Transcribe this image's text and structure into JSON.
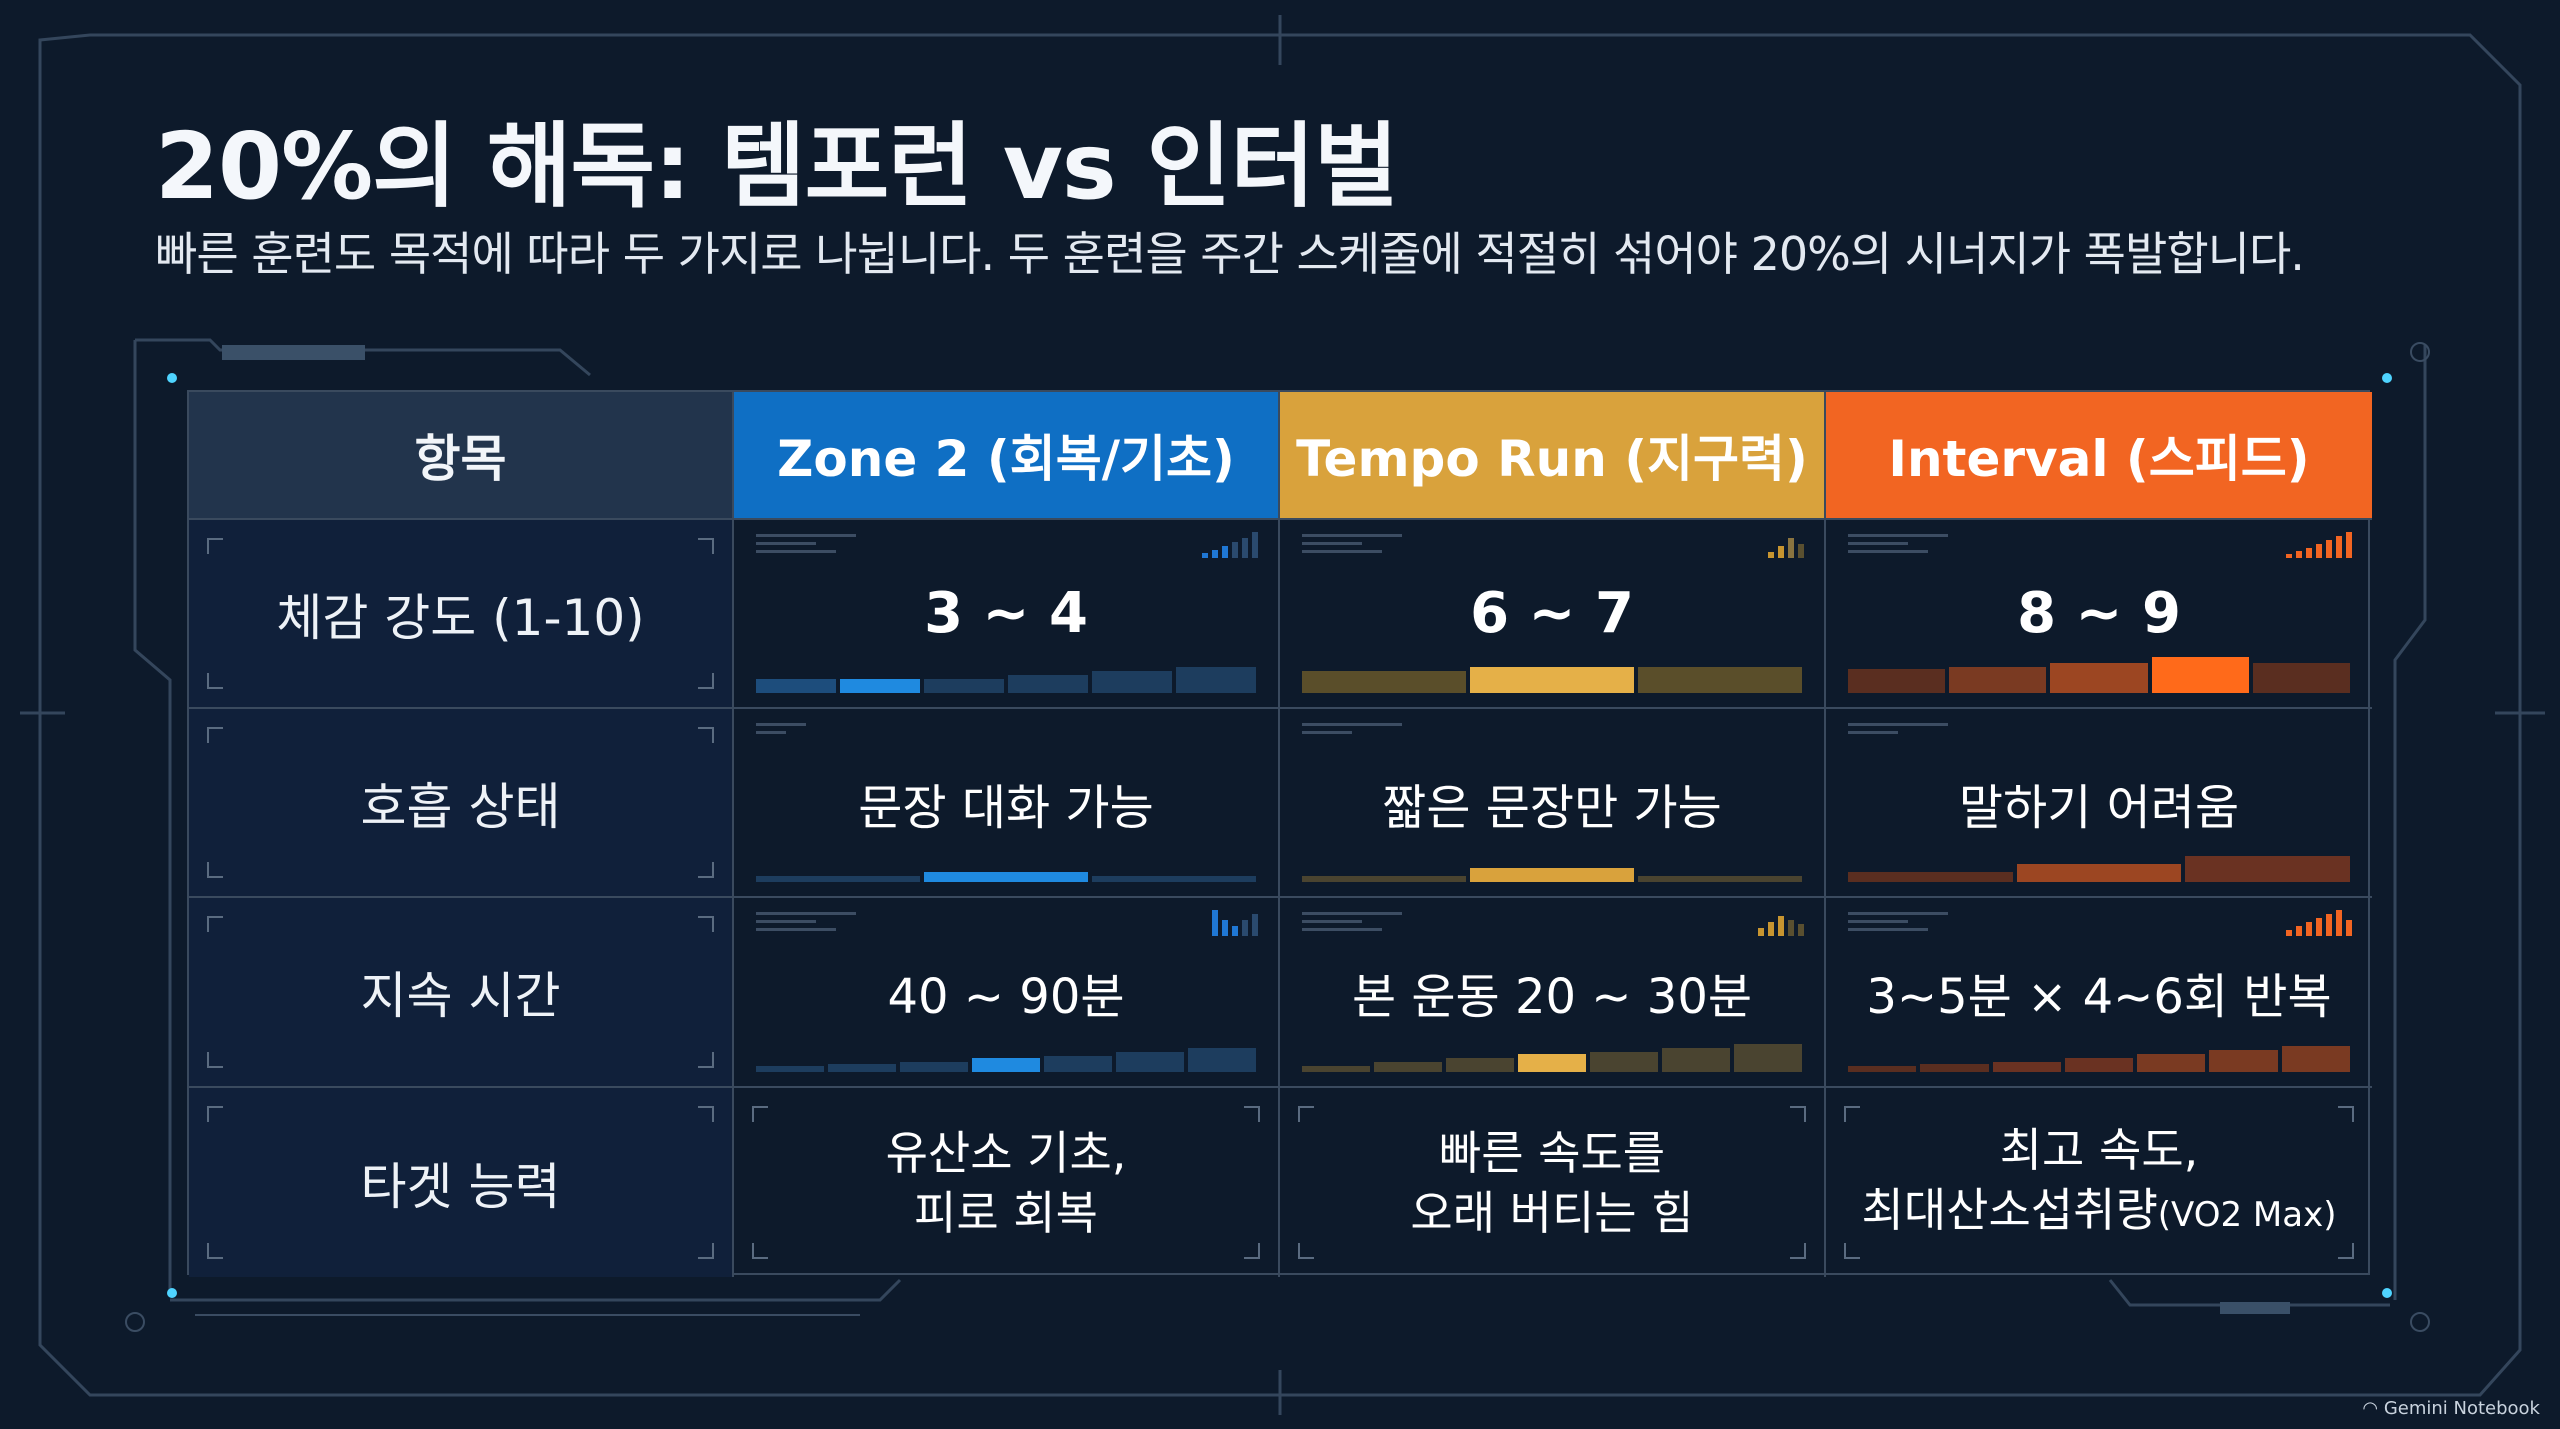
{
  "header": {
    "title": "20%의 해독: 템포런 vs 인터벌",
    "subtitle": "빠른 훈련도 목적에 따라 두 가지로 나뉩니다. 두 훈련을 주간 스케줄에 적절히 섞어야 20%의 시너지가 폭발합니다."
  },
  "table": {
    "columns": [
      "항목",
      "Zone 2 (회복/기초)",
      "Tempo Run (지구력)",
      "Interval (스피드)"
    ],
    "rows": [
      {
        "label": "체감 강도 (1-10)",
        "zone2": "3 ~ 4",
        "tempo": "6 ~ 7",
        "interval": "8 ~ 9"
      },
      {
        "label": "호흡 상태",
        "zone2": "문장 대화 가능",
        "tempo": "짧은 문장만 가능",
        "interval": "말하기 어려움"
      },
      {
        "label": "지속 시간",
        "zone2": "40 ~ 90분",
        "tempo": "본 운동 20 ~ 30분",
        "interval": "3~5분 × 4~6회 반복"
      },
      {
        "label": "타겟 능력",
        "zone2_line1": "유산소 기초,",
        "zone2_line2": "피로 회복",
        "tempo_line1": "빠른 속도를",
        "tempo_line2": "오래 버티는 힘",
        "interval_line1": "최고 속도,",
        "interval_line2": "최대산소섭취량",
        "interval_line2_small": "(VO2 Max)"
      }
    ]
  },
  "colors": {
    "background": "#0d1a2b",
    "zone2": "#0f6fc4",
    "tempo": "#d9a23c",
    "interval": "#f26522",
    "header_label": "#22344c"
  },
  "watermark": "Gemini Notebook"
}
